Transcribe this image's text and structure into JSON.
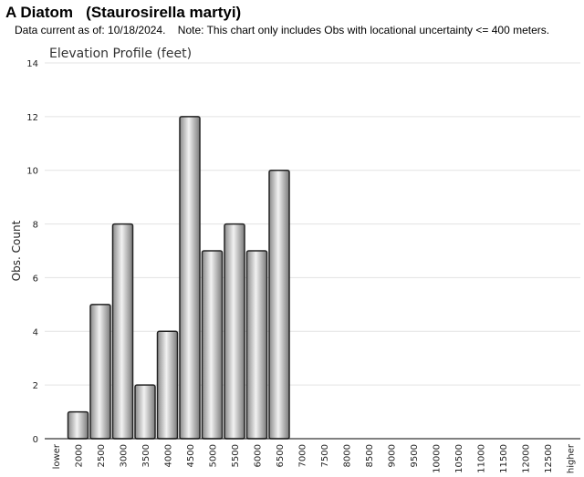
{
  "header": {
    "title": "A Diatom   (Staurosirella martyi)",
    "note": "Data current as of: 10/18/2024.    Note: This chart only includes Obs with locational uncertainty <= 400 meters."
  },
  "chart_data": {
    "type": "bar",
    "title": "Elevation Profile (feet)",
    "xlabel": "",
    "ylabel": "Obs. Count",
    "ylim": [
      0,
      14
    ],
    "yticks": [
      0,
      2,
      4,
      6,
      8,
      10,
      12,
      14
    ],
    "grid": true,
    "categories": [
      "lower",
      "2000",
      "2500",
      "3000",
      "3500",
      "4000",
      "4500",
      "5000",
      "5500",
      "6000",
      "6500",
      "7000",
      "7500",
      "8000",
      "8500",
      "9000",
      "9500",
      "10000",
      "10500",
      "11000",
      "11500",
      "12000",
      "12500",
      "higher"
    ],
    "values": [
      0,
      1,
      5,
      8,
      2,
      4,
      12,
      7,
      8,
      7,
      10,
      0,
      0,
      0,
      0,
      0,
      0,
      0,
      0,
      0,
      0,
      0,
      0,
      0
    ],
    "colors": {
      "bar_edge": "#222222",
      "bar_light": "#f2f2f2",
      "bar_dark": "#8a8a8a",
      "grid": "#e3e3e3"
    }
  }
}
